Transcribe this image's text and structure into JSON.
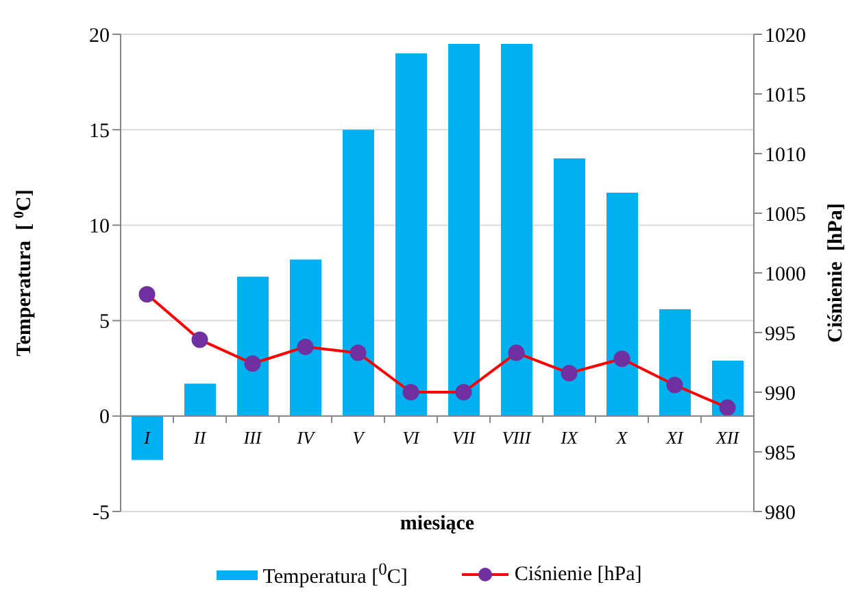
{
  "chart_data": {
    "type": "bar",
    "xlabel": "miesiące",
    "ylabel": "Temperatura  [ $^{0}$C]",
    "y2label": "Ciśnienie  [hPa]",
    "categories": [
      "I",
      "II",
      "III",
      "IV",
      "V",
      "VI",
      "VII",
      "VIII",
      "IX",
      "X",
      "XI",
      "XII"
    ],
    "series": [
      {
        "name": "Temperatura [$^{0}$C]",
        "color": "#00b0f0",
        "values": [
          -2.3,
          1.7,
          7.3,
          8.2,
          15,
          19,
          19.5,
          19.5,
          13.5,
          11.7,
          5.6,
          2.9
        ]
      },
      {
        "name": "Ciśnienie [hPa]",
        "type": "line",
        "axis": "y2",
        "color": "#ff0000",
        "values": [
          998.2,
          994.4,
          992.4,
          993.8,
          993.3,
          990,
          990,
          993.3,
          991.6,
          992.8,
          990.6,
          988.7
        ]
      }
    ],
    "ylim": [
      -5,
      20
    ],
    "yticks": [
      -5,
      0,
      5,
      10,
      15,
      20
    ],
    "y2lim": [
      980,
      1020
    ],
    "y2ticks": [
      980,
      985,
      990,
      995,
      1000,
      1005,
      1010,
      1015,
      1020
    ],
    "grid": "y",
    "legend": "bottom",
    "marker": "circle"
  }
}
